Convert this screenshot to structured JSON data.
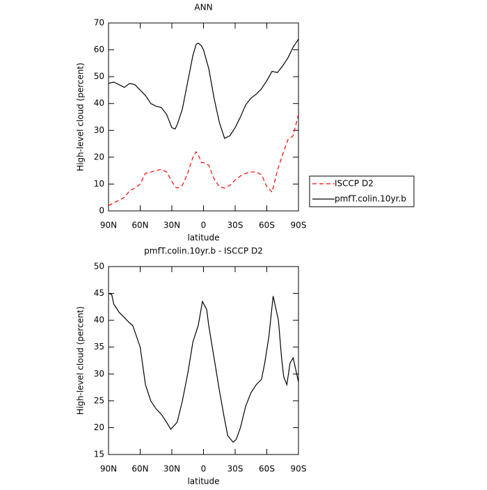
{
  "chart_data": [
    {
      "type": "line",
      "title": "ANN",
      "xlabel": "latitude",
      "ylabel": "High-level cloud (percent)",
      "x": [
        90,
        85,
        80,
        75,
        70,
        65,
        60,
        55,
        50,
        45,
        40,
        35,
        30,
        27,
        25,
        20,
        15,
        10,
        7,
        5,
        2,
        0,
        -5,
        -10,
        -15,
        -20,
        -25,
        -30,
        -35,
        -40,
        -45,
        -50,
        -55,
        -60,
        -65,
        -70,
        -75,
        -80,
        -85,
        -90
      ],
      "series": [
        {
          "name": "ISCCP D2",
          "color": "#ff0000",
          "style": "dashed",
          "values": [
            2,
            3,
            4,
            5,
            7.5,
            8.5,
            10,
            14,
            14.5,
            15,
            15.5,
            14.5,
            11,
            9,
            8.5,
            9.5,
            14,
            20,
            22,
            21,
            18,
            18,
            17,
            12,
            9,
            8.5,
            9.5,
            11.5,
            13,
            14,
            14.5,
            14.5,
            13.5,
            9,
            7,
            15,
            21,
            26.5,
            28,
            36
          ]
        },
        {
          "name": "pmfT.colin.10yr.b",
          "color": "#000000",
          "style": "solid",
          "values": [
            47.5,
            48,
            47,
            46,
            47.5,
            47,
            45,
            43,
            40,
            39,
            38.5,
            36,
            31,
            30.5,
            32,
            38,
            48,
            58,
            62,
            62.5,
            61.5,
            60,
            53,
            42,
            33,
            27,
            28,
            31,
            35,
            39.5,
            42,
            43.5,
            45.5,
            48.5,
            52,
            51.5,
            54,
            57,
            61,
            64
          ]
        }
      ],
      "xlim": [
        90,
        -90
      ],
      "xticks": [
        {
          "value": 90,
          "label": "90N"
        },
        {
          "value": 60,
          "label": "60N"
        },
        {
          "value": 30,
          "label": "30N"
        },
        0,
        {
          "value": -30,
          "label": "30S"
        },
        {
          "value": -60,
          "label": "60S"
        },
        {
          "value": -90,
          "label": "90S"
        }
      ],
      "ylim": [
        0,
        70
      ],
      "yticks": [
        0,
        10,
        20,
        30,
        40,
        50,
        60,
        70
      ],
      "legend": "right"
    },
    {
      "type": "line",
      "title": "pmfT.colin.10yr.b - ISCCP D2",
      "xlabel": "latitude",
      "ylabel": "High-level cloud (percent)",
      "x": [
        90,
        87,
        85,
        80,
        75,
        70,
        67,
        60,
        55,
        50,
        45,
        40,
        35,
        31,
        25,
        20,
        15,
        10,
        5,
        1,
        -3,
        -5,
        -10,
        -15,
        -20,
        -23,
        -28,
        -31,
        -35,
        -40,
        -45,
        -50,
        -55,
        -58,
        -62,
        -66,
        -71,
        -74,
        -76,
        -79,
        -82,
        -85,
        -90
      ],
      "color": "#000000",
      "values": [
        45,
        44.8,
        43,
        41.5,
        40.5,
        39.5,
        39,
        35,
        28,
        25,
        23.5,
        22.5,
        21,
        19.7,
        21,
        25,
        30,
        36,
        39,
        43.5,
        42,
        39,
        33,
        27,
        21.5,
        18.5,
        17.3,
        17.8,
        20,
        24,
        26.5,
        28,
        29,
        32,
        37,
        44.5,
        40,
        33,
        29.5,
        28,
        32,
        33,
        28.5
      ],
      "xlim": [
        90,
        -90
      ],
      "xticks": [
        {
          "value": 90,
          "label": "90N"
        },
        {
          "value": 60,
          "label": "60N"
        },
        {
          "value": 30,
          "label": "30N"
        },
        0,
        {
          "value": -30,
          "label": "30S"
        },
        {
          "value": -60,
          "label": "60S"
        },
        {
          "value": -90,
          "label": "90S"
        }
      ],
      "ylim": [
        15,
        50
      ],
      "yticks": [
        15,
        20,
        25,
        30,
        35,
        40,
        45,
        50
      ]
    }
  ]
}
